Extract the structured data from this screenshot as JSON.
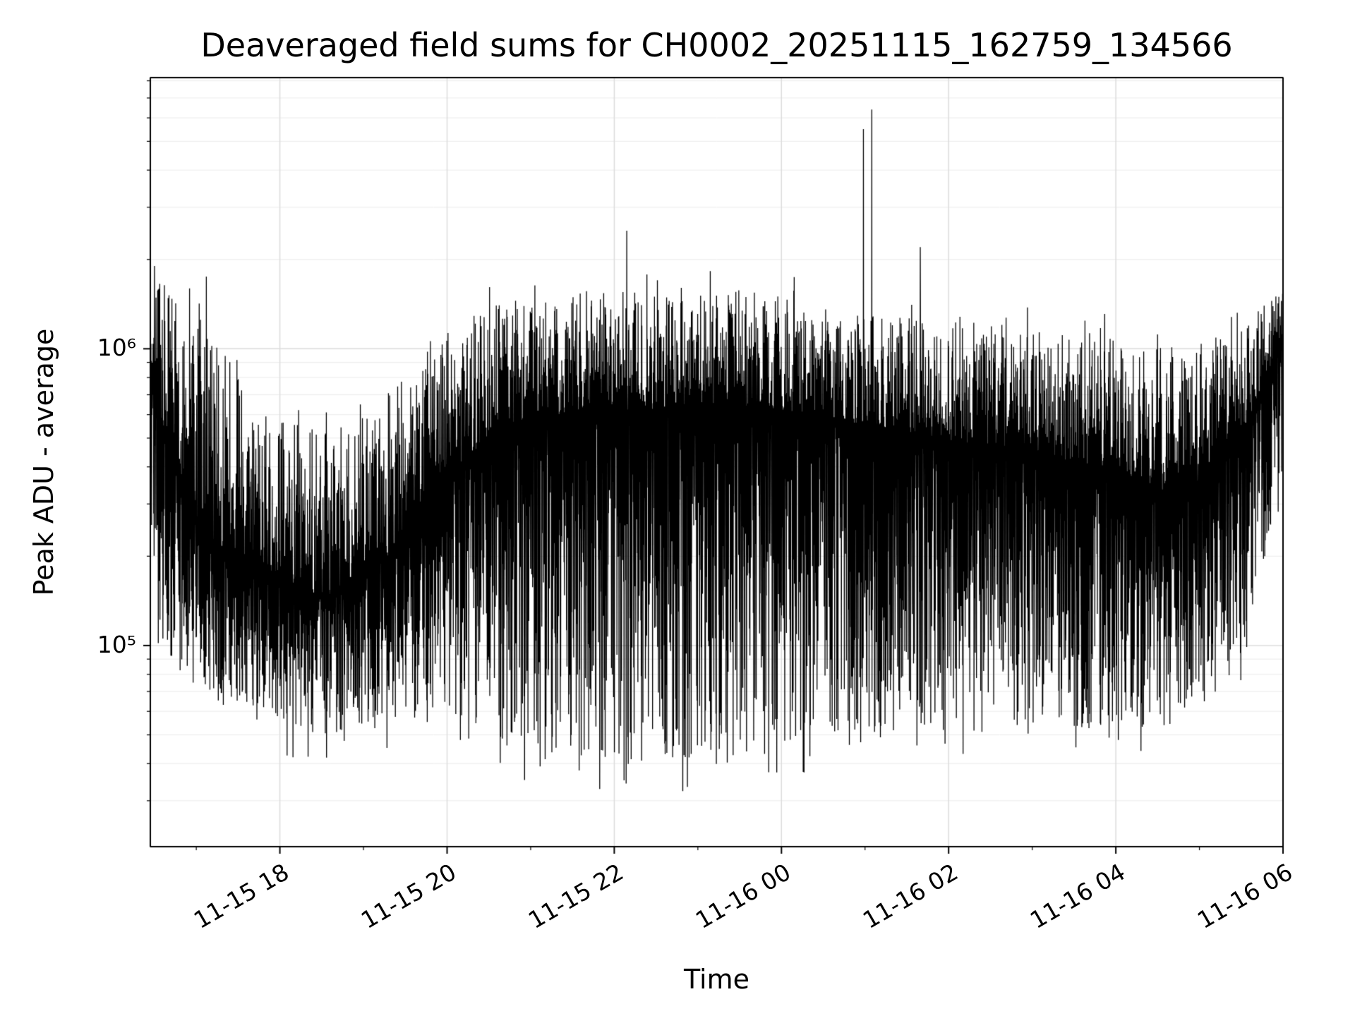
{
  "chart_data": {
    "type": "line",
    "title": "Deaveraged field sums for CH0002_20251115_162759_134566",
    "xlabel": "Time",
    "ylabel": "Peak ADU - average",
    "yscale": "log",
    "line_color": "#000000",
    "background": "#ffffff",
    "grid_major_color": "#dcdcdc",
    "grid_minor_color": "#ececec",
    "frame_color": "#000000",
    "ylim": [
      21000,
      8200000
    ],
    "x_start_hours": 16.45,
    "x_end_hours": 30.0,
    "x_ticks": [
      {
        "hours": 18,
        "label": "11-15 18"
      },
      {
        "hours": 20,
        "label": "11-15 20"
      },
      {
        "hours": 22,
        "label": "11-15 22"
      },
      {
        "hours": 24,
        "label": "11-16 00"
      },
      {
        "hours": 26,
        "label": "11-16 02"
      },
      {
        "hours": 28,
        "label": "11-16 04"
      },
      {
        "hours": 30,
        "label": "11-16 06"
      }
    ],
    "y_ticks": [
      {
        "value": 100000,
        "label": "10⁵"
      },
      {
        "value": 1000000,
        "label": "10⁶"
      }
    ],
    "envelope_log10": [
      {
        "t": 16.45,
        "center": 5.95,
        "high": 6.25,
        "low": 5.2
      },
      {
        "t": 16.62,
        "center": 5.7,
        "high": 6.2,
        "low": 4.95
      },
      {
        "t": 17.05,
        "center": 5.38,
        "high": 6.15,
        "low": 4.85
      },
      {
        "t": 17.7,
        "center": 5.26,
        "high": 5.8,
        "low": 4.74
      },
      {
        "t": 18.55,
        "center": 5.16,
        "high": 5.72,
        "low": 4.7
      },
      {
        "t": 19.3,
        "center": 5.3,
        "high": 5.92,
        "low": 4.74
      },
      {
        "t": 20.0,
        "center": 5.58,
        "high": 6.1,
        "low": 4.78
      },
      {
        "t": 20.7,
        "center": 5.74,
        "high": 6.16,
        "low": 4.66
      },
      {
        "t": 21.7,
        "center": 5.8,
        "high": 6.2,
        "low": 4.6
      },
      {
        "t": 22.8,
        "center": 5.78,
        "high": 6.18,
        "low": 4.6
      },
      {
        "t": 23.8,
        "center": 5.8,
        "high": 6.2,
        "low": 4.63
      },
      {
        "t": 24.7,
        "center": 5.76,
        "high": 6.12,
        "low": 4.7
      },
      {
        "t": 25.7,
        "center": 5.7,
        "high": 6.1,
        "low": 4.68
      },
      {
        "t": 26.8,
        "center": 5.66,
        "high": 6.08,
        "low": 4.7
      },
      {
        "t": 27.8,
        "center": 5.6,
        "high": 6.05,
        "low": 4.72
      },
      {
        "t": 28.8,
        "center": 5.5,
        "high": 6.0,
        "low": 4.73
      },
      {
        "t": 29.55,
        "center": 5.72,
        "high": 6.1,
        "low": 4.95
      },
      {
        "t": 30.0,
        "center": 6.05,
        "high": 6.2,
        "low": 5.5
      }
    ],
    "spikes": [
      {
        "t_hours": 16.5,
        "value": 1900000
      },
      {
        "t_hours": 17.12,
        "value": 1750000
      },
      {
        "t_hours": 22.15,
        "value": 2500000
      },
      {
        "t_hours": 24.98,
        "value": 5500000
      },
      {
        "t_hours": 25.08,
        "value": 6400000
      },
      {
        "t_hours": 25.66,
        "value": 2200000
      }
    ],
    "noise_seed": 7,
    "samples": 5400
  }
}
